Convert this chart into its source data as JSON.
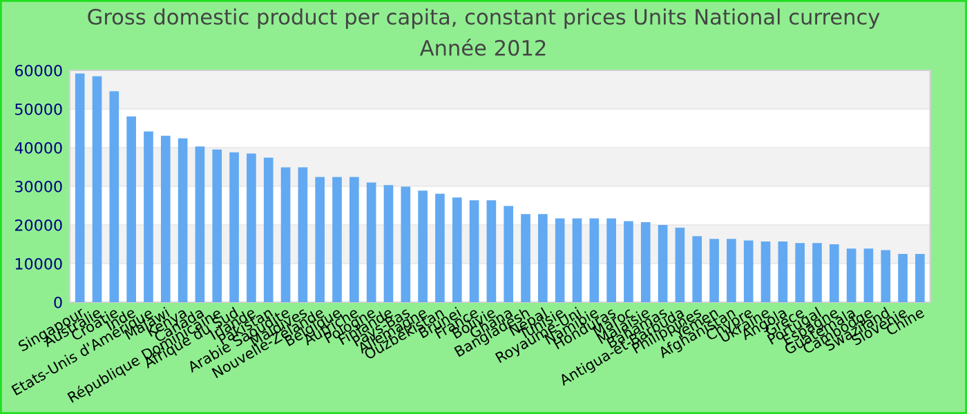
{
  "chart_data": {
    "type": "bar",
    "title": "Gross domestic product per capita, constant prices Units National currency",
    "subtitle": "Année 2012",
    "categories": [
      "Singapour",
      "Australie",
      "Croatie",
      "Inde",
      "Etats-Unis d'Amérique",
      "Malawi",
      "Kenya",
      "Canada",
      "République Dominicaine",
      "Afrique du Sud",
      "Irlande",
      "Pakistan",
      "Arabie Saoudite",
      "Maldives",
      "Nouvelle-Zélande",
      "Belgique",
      "Autriche",
      "Pologne",
      "Finlande",
      "Pays-Bas",
      "Allemagne",
      "Ouzbékistan",
      "Brunei",
      "France",
      "Bolivie",
      "Ghana",
      "Bangladesh",
      "Népal",
      "Tunisie",
      "Royaume-Uni",
      "Namibie",
      "Honduras",
      "Maroc",
      "Malaisie",
      "Bahamas",
      "Antigua-et-Barbuda",
      "Philippines",
      "Yémen",
      "Afghanistan",
      "Chypre",
      "Ukraine",
      "Angola",
      "Grèce",
      "Portugal",
      "Espagne",
      "Guatemala",
      "Cambodge",
      "Swaziland",
      "Slovénie",
      "Chine"
    ],
    "values": [
      59200,
      58500,
      54600,
      48100,
      44200,
      43100,
      42400,
      40300,
      39500,
      38800,
      38500,
      37400,
      34900,
      34900,
      32400,
      32400,
      32400,
      31000,
      30300,
      29900,
      28900,
      28100,
      27100,
      26400,
      26400,
      24900,
      22800,
      22800,
      21700,
      21700,
      21700,
      21700,
      21000,
      20700,
      20000,
      19300,
      17100,
      16400,
      16400,
      16000,
      15700,
      15700,
      15300,
      15300,
      15000,
      13900,
      13900,
      13500,
      12500,
      12500
    ],
    "color": "#62a9f2",
    "ylim": [
      0,
      60000
    ],
    "yticks": [
      0,
      10000,
      20000,
      30000,
      40000,
      50000,
      60000
    ],
    "grid": "y",
    "legend": false
  }
}
